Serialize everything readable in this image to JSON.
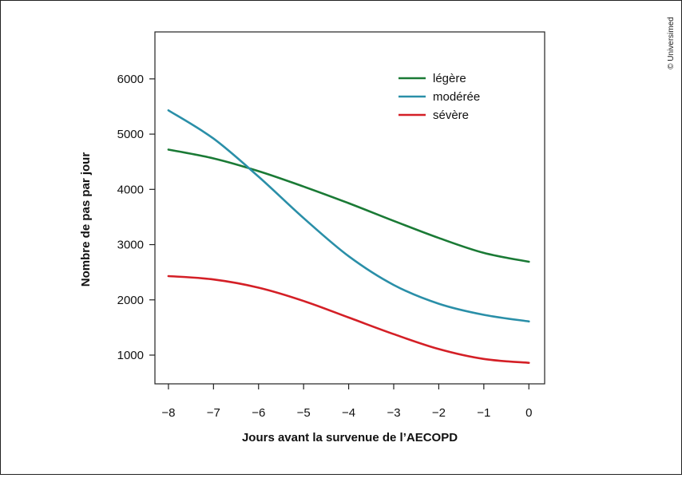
{
  "chart_data": {
    "type": "line",
    "title": "",
    "xlabel": "Jours avant la survenue de l’AECOPD",
    "ylabel": "Nombre de pas par jour",
    "xlim": [
      -8.3,
      0.35
    ],
    "ylim": [
      480,
      6850
    ],
    "x_ticks": [
      -8,
      -7,
      -6,
      -5,
      -4,
      -3,
      -2,
      -1,
      0
    ],
    "x_tick_labels": [
      "−8",
      "−7",
      "−6",
      "−5",
      "−4",
      "−3",
      "−2",
      "−1",
      "0"
    ],
    "y_ticks": [
      1000,
      2000,
      3000,
      4000,
      5000,
      6000
    ],
    "y_tick_labels": [
      "1000",
      "2000",
      "3000",
      "4000",
      "5000",
      "6000"
    ],
    "grid": false,
    "legend_position": "top-right",
    "series": [
      {
        "name": "légère",
        "color": "#1a7a35",
        "x": [
          -8,
          -7,
          -6,
          -5,
          -4,
          -3,
          -2,
          -1,
          0
        ],
        "y": [
          4720,
          4560,
          4330,
          4050,
          3750,
          3430,
          3120,
          2850,
          2690
        ]
      },
      {
        "name": "modérée",
        "color": "#2a8fa8",
        "x": [
          -8,
          -7,
          -6,
          -5,
          -4,
          -3,
          -2,
          -1,
          0
        ],
        "y": [
          5430,
          4920,
          4230,
          3480,
          2790,
          2270,
          1930,
          1730,
          1610
        ]
      },
      {
        "name": "sévère",
        "color": "#d41f26",
        "x": [
          -8,
          -7,
          -6,
          -5,
          -4,
          -3,
          -2,
          -1,
          0
        ],
        "y": [
          2430,
          2370,
          2220,
          1980,
          1680,
          1380,
          1110,
          930,
          860
        ]
      }
    ]
  },
  "credit": "© Universimed"
}
